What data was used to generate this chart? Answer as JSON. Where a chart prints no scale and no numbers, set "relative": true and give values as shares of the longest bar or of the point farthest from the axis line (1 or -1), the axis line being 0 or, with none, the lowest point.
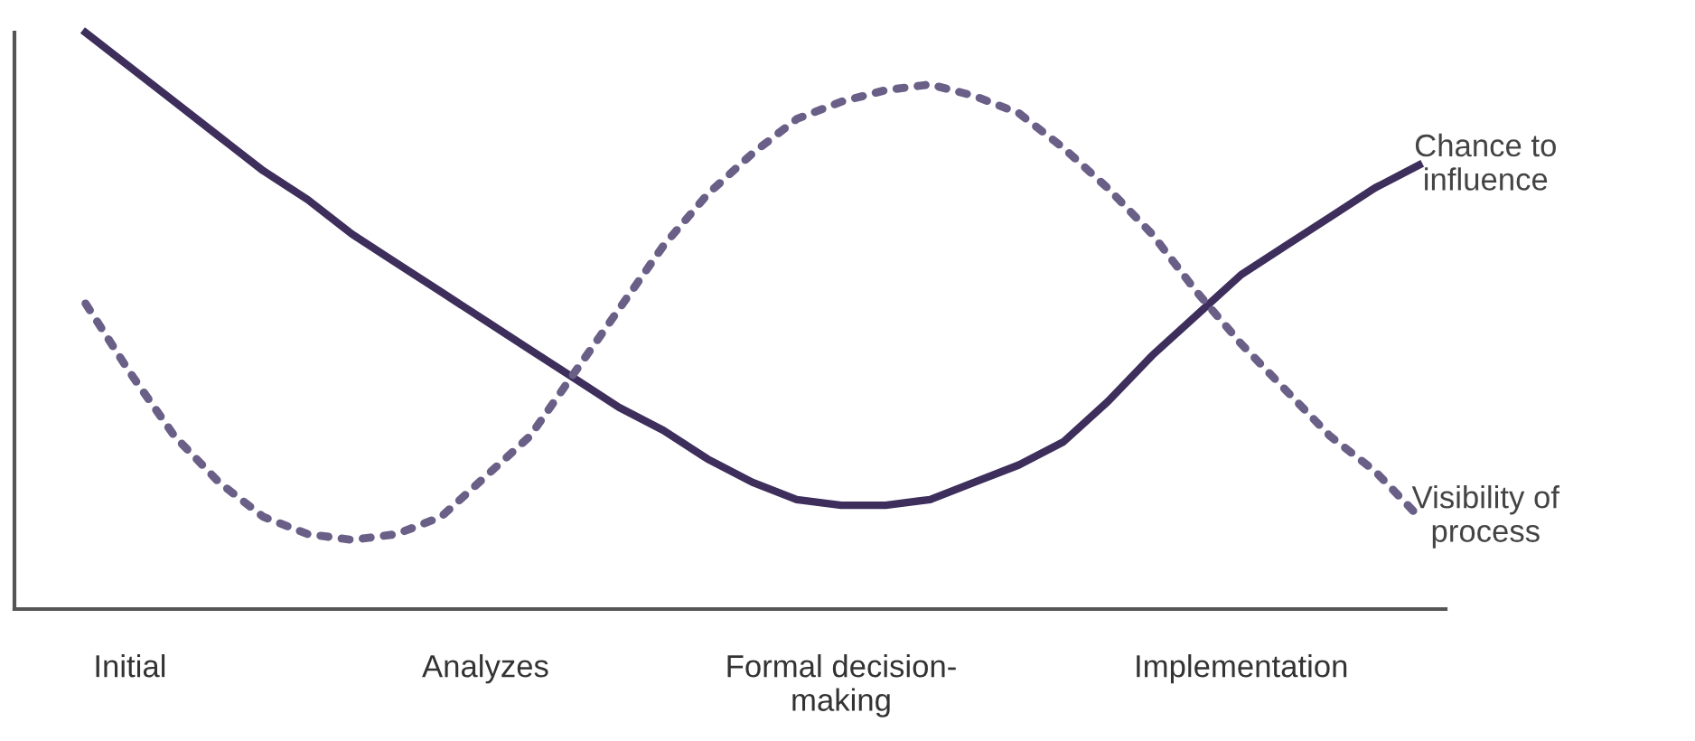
{
  "chart_data": {
    "type": "line",
    "relative": true,
    "legend": false,
    "grid": false,
    "marker": "none",
    "categories": [
      null,
      "Initial",
      null,
      null,
      null,
      null,
      null,
      null,
      null,
      "Analyzes",
      null,
      null,
      null,
      null,
      null,
      null,
      null,
      "Formal decision-\nmaking",
      null,
      null,
      null,
      null,
      null,
      null,
      null,
      null,
      "Implementation",
      null,
      null,
      null,
      null
    ],
    "series": [
      {
        "name": "Chance to\ninfluence",
        "color": "#3d2e5c",
        "line_style": "solid",
        "values": [
          1.0,
          0.94,
          0.88,
          0.82,
          0.76,
          0.71,
          0.65,
          0.6,
          0.55,
          0.5,
          0.45,
          0.4,
          0.35,
          0.31,
          0.26,
          0.22,
          0.19,
          0.18,
          0.18,
          0.19,
          0.22,
          0.25,
          0.29,
          0.36,
          0.44,
          0.51,
          0.58,
          0.63,
          0.68,
          0.73,
          0.77
        ]
      },
      {
        "name": "Visibility of\nprocess",
        "color": "#6a5f87",
        "line_style": "dotted",
        "values": [
          0.53,
          0.41,
          0.3,
          0.22,
          0.16,
          0.13,
          0.12,
          0.13,
          0.16,
          0.23,
          0.3,
          0.41,
          0.52,
          0.63,
          0.72,
          0.79,
          0.85,
          0.88,
          0.9,
          0.91,
          0.89,
          0.86,
          0.8,
          0.73,
          0.65,
          0.55,
          0.46,
          0.38,
          0.3,
          0.24,
          0.16
        ]
      }
    ]
  }
}
